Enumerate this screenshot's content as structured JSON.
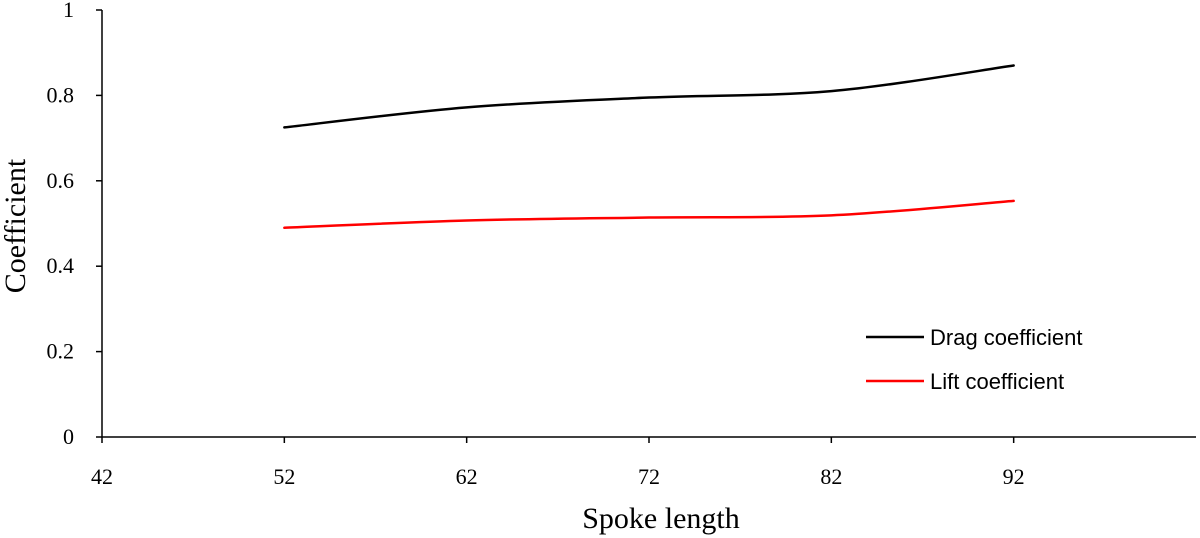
{
  "chart_data": {
    "type": "line",
    "title": "",
    "xlabel": "Spoke length",
    "ylabel": "Coefficient",
    "xlim": [
      42,
      102
    ],
    "ylim": [
      0,
      1
    ],
    "x_ticks": [
      "42",
      "52",
      "62",
      "72",
      "82",
      "92"
    ],
    "y_ticks": [
      "0",
      "0.2",
      "0.4",
      "0.6",
      "0.8",
      "1"
    ],
    "x": [
      52,
      62,
      72,
      82,
      92
    ],
    "series": [
      {
        "name": "Drag coefficient",
        "color": "#000000",
        "values": [
          0.725,
          0.772,
          0.795,
          0.81,
          0.87
        ]
      },
      {
        "name": "Lift coefficient",
        "color": "#ff0000",
        "values": [
          0.49,
          0.507,
          0.514,
          0.519,
          0.553
        ]
      }
    ],
    "grid": false,
    "legend": "lower-right"
  }
}
